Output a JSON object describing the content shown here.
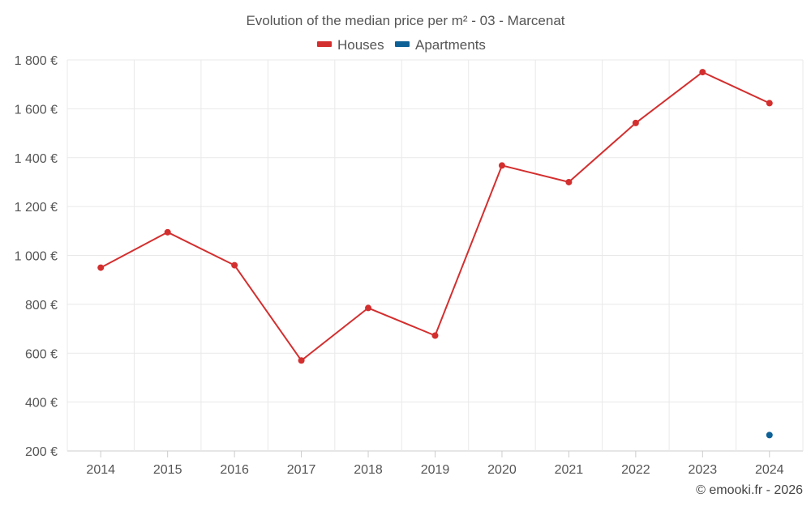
{
  "chart_data": {
    "type": "line",
    "title": "Evolution of the median price per m² - 03 - Marcenat",
    "xlabel": "",
    "ylabel": "",
    "categories": [
      "2014",
      "2015",
      "2016",
      "2017",
      "2018",
      "2019",
      "2020",
      "2021",
      "2022",
      "2023",
      "2024"
    ],
    "ylim": [
      200,
      1800
    ],
    "yticks": [
      200,
      400,
      600,
      800,
      1000,
      1200,
      1400,
      1600,
      1800
    ],
    "ytick_labels": [
      "200 €",
      "400 €",
      "600 €",
      "800 €",
      "1 000 €",
      "1 200 €",
      "1 400 €",
      "1 600 €",
      "1 800 €"
    ],
    "grid": true,
    "legend_position": "top-center",
    "series": [
      {
        "name": "Houses",
        "color": "#d32f2f",
        "values": [
          950,
          1095,
          960,
          570,
          785,
          672,
          1368,
          1300,
          1542,
          1750,
          1623
        ]
      },
      {
        "name": "Apartments",
        "color": "#0d6196",
        "values": [
          null,
          null,
          null,
          null,
          null,
          null,
          null,
          null,
          null,
          null,
          265
        ]
      }
    ]
  },
  "credit": "© emooki.fr - 2026"
}
